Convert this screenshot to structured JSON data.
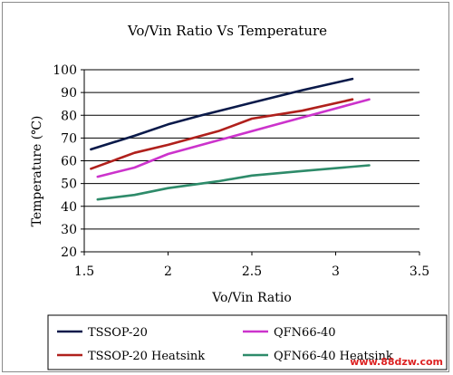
{
  "chart_data": {
    "type": "line",
    "title": "Vo/Vin Ratio Vs Temperature",
    "xlabel": "Vo/Vin Ratio",
    "ylabel": "Temperature (℃)",
    "xlim": [
      1.5,
      3.5
    ],
    "ylim": [
      20,
      100
    ],
    "xticks": [
      "1.5",
      "2",
      "2.5",
      "3",
      "3.5"
    ],
    "yticks": [
      "20",
      "30",
      "40",
      "50",
      "60",
      "70",
      "80",
      "90",
      "100"
    ],
    "grid": "horizontal",
    "legend_position": "bottom",
    "series": [
      {
        "name": "TSSOP-20",
        "color": "#0a1a4a",
        "x": [
          1.54,
          1.8,
          2.0,
          2.2,
          2.5,
          2.8,
          3.1
        ],
        "y": [
          65,
          71,
          76,
          80,
          85.5,
          91,
          96
        ]
      },
      {
        "name": "QFN66-40",
        "color": "#cc33cc",
        "x": [
          1.58,
          1.8,
          2.0,
          2.3,
          2.6,
          2.9,
          3.2
        ],
        "y": [
          53,
          57,
          63,
          69,
          75,
          81,
          87
        ]
      },
      {
        "name": "TSSOP-20 Heatsink",
        "color": "#b0201c",
        "x": [
          1.54,
          1.8,
          2.0,
          2.3,
          2.5,
          2.8,
          3.1
        ],
        "y": [
          56.5,
          63.5,
          67,
          73,
          78.5,
          82,
          87
        ]
      },
      {
        "name": "QFN66-40 Heatsink",
        "color": "#2e8b6a",
        "x": [
          1.58,
          1.8,
          2.0,
          2.3,
          2.5,
          2.8,
          3.2
        ],
        "y": [
          43,
          45,
          48,
          51,
          53.5,
          55.5,
          58
        ]
      }
    ]
  },
  "watermark": "www.88dzw.com"
}
